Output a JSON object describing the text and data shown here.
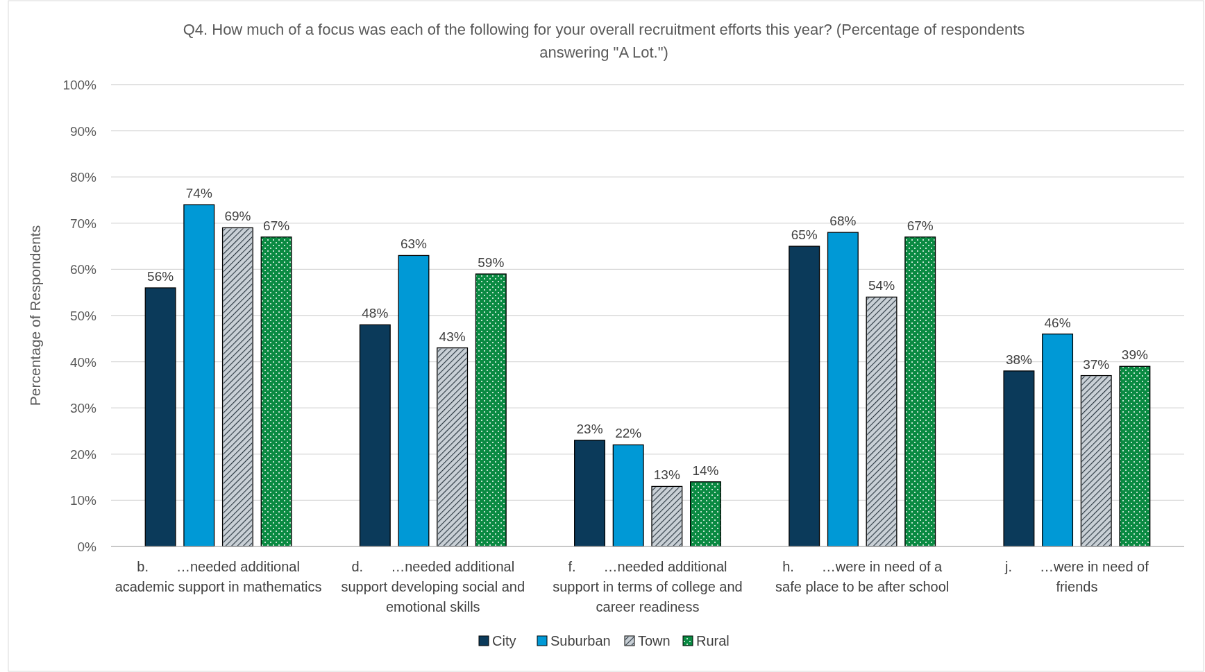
{
  "chart_data": {
    "type": "bar",
    "title": "Q4. How much of a focus was each of the following for your overall recruitment efforts this year? (Percentage of respondents answering \"A Lot.\")",
    "ylabel": "Percentage of Respondents",
    "categories": [
      "b.   …needed additional academic support in mathematics",
      "d.   …needed additional support developing social and emotional skills",
      "f.   …needed additional support in terms of college and career readiness",
      "h.   …were in need of a safe place to be after school",
      "j.   …were in need of friends"
    ],
    "series": [
      {
        "name": "City",
        "color": "#0b3a5a",
        "values": [
          56,
          48,
          23,
          65,
          38
        ],
        "value_labels": [
          "56%",
          "48%",
          "23%",
          "65%",
          "38%"
        ]
      },
      {
        "name": "Suburban",
        "color": "#0099d6",
        "values": [
          74,
          63,
          22,
          68,
          46
        ],
        "value_labels": [
          "74%",
          "63%",
          "22%",
          "68%",
          "46%"
        ]
      },
      {
        "name": "Town",
        "color": "#c9d0d6",
        "values": [
          69,
          43,
          13,
          54,
          37
        ],
        "value_labels": [
          "69%",
          "43%",
          "13%",
          "54%",
          "37%"
        ]
      },
      {
        "name": "Rural",
        "color": "#0a8a42",
        "values": [
          67,
          59,
          14,
          67,
          39
        ],
        "value_labels": [
          "67%",
          "59%",
          "14%",
          "67%",
          "39%"
        ]
      }
    ],
    "ylim": [
      0,
      100
    ],
    "yticks": [
      {
        "value": 0,
        "label": "0%"
      },
      {
        "value": 10,
        "label": "10%"
      },
      {
        "value": 20,
        "label": "20%"
      },
      {
        "value": 30,
        "label": "30%"
      },
      {
        "value": 40,
        "label": "40%"
      },
      {
        "value": 50,
        "label": "50%"
      },
      {
        "value": 60,
        "label": "60%"
      },
      {
        "value": 70,
        "label": "70%"
      },
      {
        "value": 80,
        "label": "80%"
      },
      {
        "value": 90,
        "label": "90%"
      },
      {
        "value": 100,
        "label": "100%"
      }
    ],
    "grid": "y",
    "legend": "bottom"
  }
}
